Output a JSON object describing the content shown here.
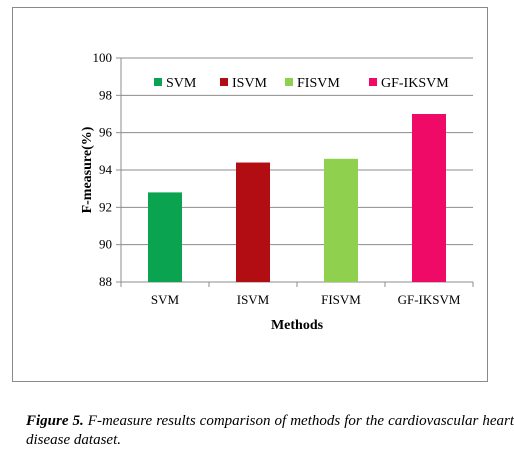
{
  "chart_data": {
    "type": "bar",
    "categories": [
      "SVM",
      "ISVM",
      "FISVM",
      "GF-IKSVM"
    ],
    "values": [
      92.8,
      94.4,
      94.6,
      97.0
    ],
    "colors": [
      "#0aa34f",
      "#b20d12",
      "#8fd14f",
      "#ee0a66"
    ],
    "xlabel": "Methods",
    "ylabel": "F-measure(%)",
    "ylim": [
      88,
      100
    ],
    "yticks": [
      88,
      90,
      92,
      94,
      96,
      98,
      100
    ],
    "grid": true,
    "legend": {
      "placement": "top",
      "entries": [
        "SVM",
        "ISVM",
        "FISVM",
        "GF-IKSVM"
      ]
    }
  },
  "caption": {
    "label": "Figure 5.",
    "text": " F-measure results comparison of methods for the cardiovascular heart disease dataset."
  }
}
